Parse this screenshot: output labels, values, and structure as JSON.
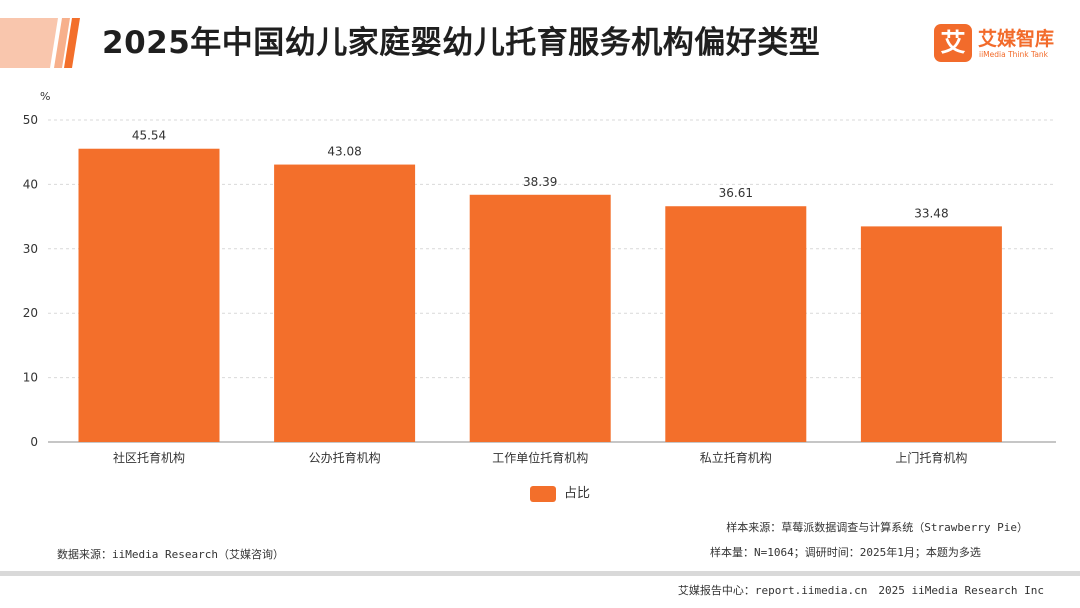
{
  "header": {
    "title": "2025年中国幼儿家庭婴幼儿托育服务机构偏好类型",
    "logo_mark": "艾",
    "logo_name": "艾媒智库",
    "logo_sub": "iiMedia Think Tank",
    "accent_color": "#f36f2b"
  },
  "chart_data": {
    "type": "bar",
    "categories": [
      "社区托育机构",
      "公办托育机构",
      "工作单位托育机构",
      "私立托育机构",
      "上门托育机构"
    ],
    "series": [
      {
        "name": "占比",
        "values": [
          45.54,
          43.08,
          38.39,
          36.61,
          33.48
        ],
        "color": "#f36f2b"
      }
    ],
    "data_labels": [
      "45.54",
      "43.08",
      "38.39",
      "36.61",
      "33.48"
    ],
    "yunit": "%",
    "ylim": [
      0,
      50
    ],
    "yticks": [
      "0",
      "10",
      "20",
      "30",
      "40",
      "50"
    ],
    "grid": true,
    "legend": "bottom-center"
  },
  "notes": {
    "data_source": "数据来源：iiMedia Research（艾媒咨询）",
    "sample_source": "样本来源：草莓派数据调查与计算系统（Strawberry Pie）",
    "sample_size": "样本量：N=1064；调研时间：2025年1月；本题为多选"
  },
  "footer": {
    "text": "艾媒报告中心：report.iimedia.cn　2025 iiMedia Research Inc"
  }
}
